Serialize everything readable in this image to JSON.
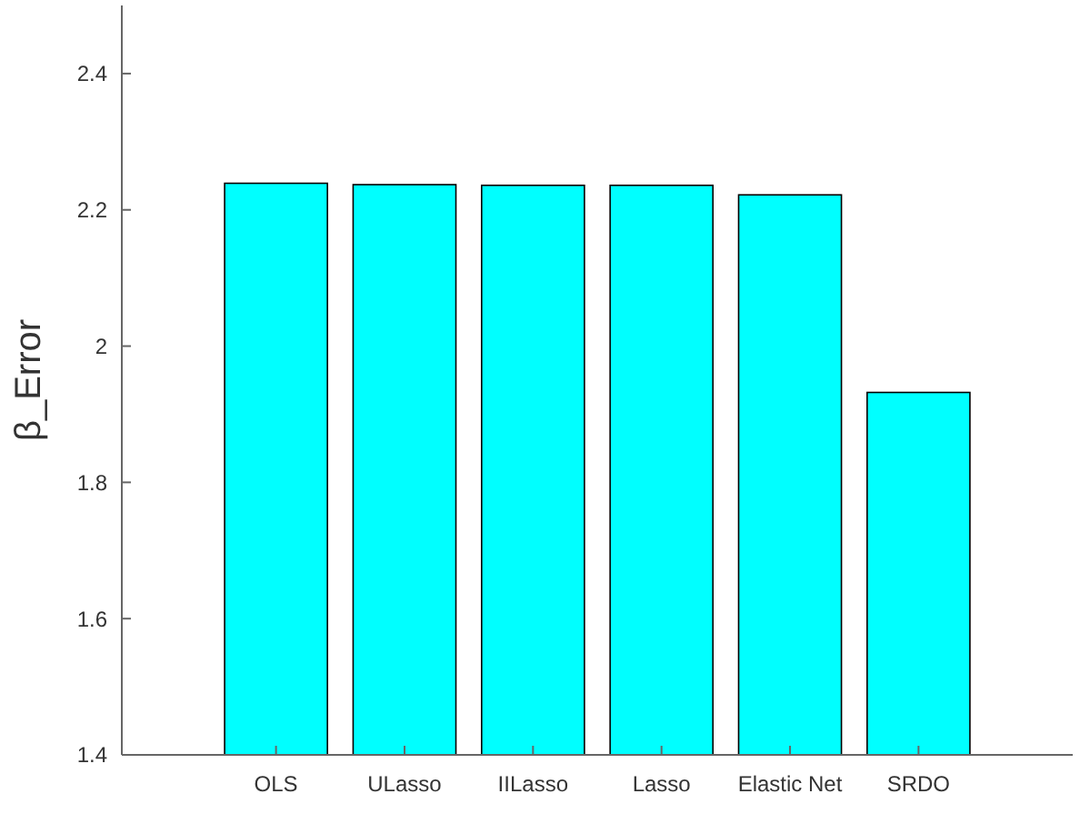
{
  "chart_data": {
    "type": "bar",
    "ylabel": "β_Error",
    "categories": [
      "OLS",
      "ULasso",
      "IILasso",
      "Lasso",
      "Elastic Net",
      "SRDO"
    ],
    "values": [
      2.239,
      2.237,
      2.236,
      2.236,
      2.222,
      1.932
    ],
    "color": "#00ffff",
    "ylim": [
      1.4,
      2.5
    ],
    "yticks": [
      1.4,
      1.6,
      1.8,
      2,
      2.2,
      2.4
    ],
    "grid": false
  }
}
